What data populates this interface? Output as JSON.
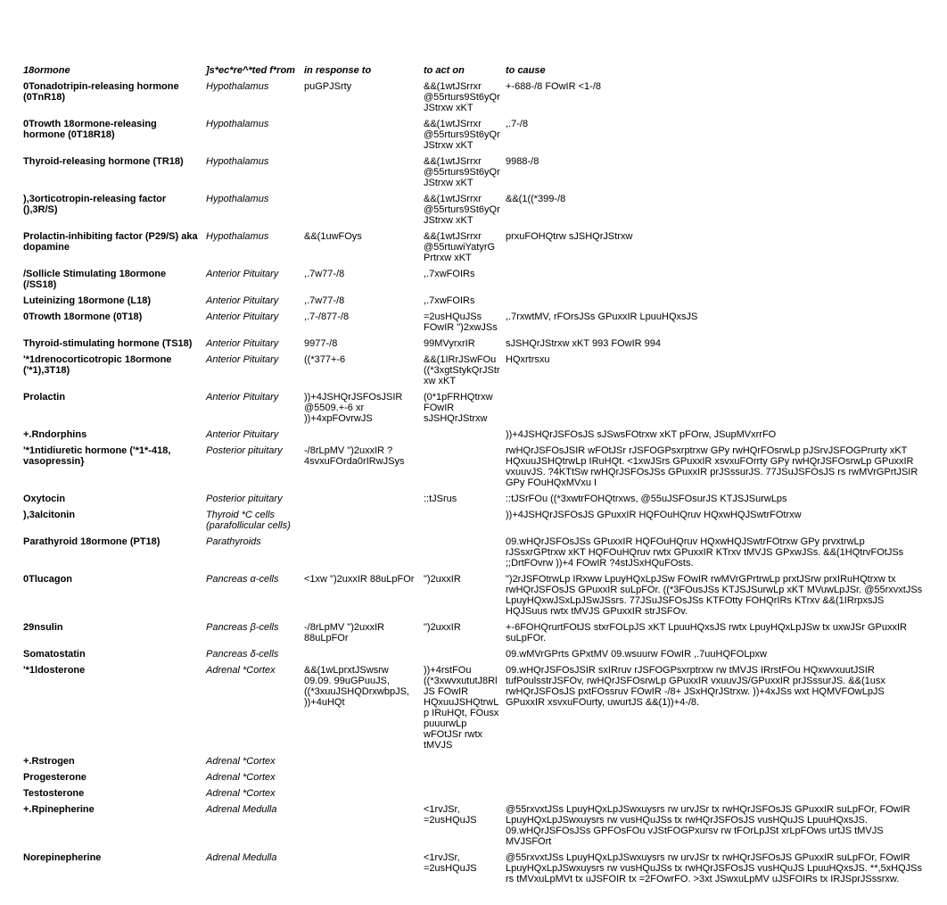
{
  "headers": {
    "c1": "18ormone",
    "c2": "]s*ec*re^*ted f*rom",
    "c3": "in response to",
    "c4": "to act on",
    "c5": "to cause"
  },
  "rows": [
    {
      "c1": "0Tonadotripin-releasing hormone (0TnR18)",
      "c2": "Hypothalamus",
      "c3": "puGPJSrty",
      "c4": "&&(1wtJSrrxr @55rturs9St6yQrJStrxw xKT",
      "c5": "+-688-/8 FOwIR <1-/8"
    },
    {
      "c1": "0Trowth 18ormone-releasing hormone (0T18R18)",
      "c2": "Hypothalamus",
      "c3": "",
      "c4": "&&(1wtJSrrxr @55rturs9St6yQrJStrxw xKT",
      "c5": ",.7-/8"
    },
    {
      "c1": "Thyroid-releasing hormone (TR18)",
      "c2": "Hypothalamus",
      "c3": "",
      "c4": "&&(1wtJSrrxr @55rturs9St6yQrJStrxw xKT",
      "c5": "9988-/8"
    },
    {
      "c1": "),3orticotropin-releasing factor (),3R/S)",
      "c2": "Hypothalamus",
      "c3": "",
      "c4": "&&(1wtJSrrxr @55rturs9St6yQrJStrxw xKT",
      "c5": "&&(1((*399-/8"
    },
    {
      "c1": "Prolactin-inhibiting factor (P29/S) aka dopamine",
      "c2": "Hypothalamus",
      "c3": "&&(1uwFOys",
      "c4": "&&(1wtJSrrxr @55rtuwiYatyrGPrtrxw xKT",
      "c5": "prxuFOHQtrw sJSHQrJStrxw"
    },
    {
      "c1": "/Sollicle Stimulating 18ormone (/SS18)",
      "c2": "Anterior Pituitary",
      "c3": ",.7w77-/8",
      "c4": ",.7xwFOIRs",
      "c5": ""
    },
    {
      "c1": "Luteinizing 18ormone (L18)",
      "c2": "Anterior Pituitary",
      "c3": ",.7w77-/8",
      "c4": ",.7xwFOIRs",
      "c5": ""
    },
    {
      "c1": "0Trowth 18ormone (0T18)",
      "c2": "Anterior Pituitary",
      "c3": ",.7-/877-/8",
      "c4": "=2usHQuJSs FOwIR \")2xwJSs",
      "c5": ",.7rxwtMV, rFOrsJSs GPuxxIR LpuuHQxsJS"
    },
    {
      "c1": "Thyroid-stimulating hormone (TS18)",
      "c2": "Anterior Pituitary",
      "c3": "9977-/8",
      "c4": "99MVyrxrIR",
      "c5": "sJSHQrJStrxw xKT 993 FOwIR 994"
    },
    {
      "c1": "'*1drenocorticotropic 18ormone ('*1),3T18)",
      "c2": "Anterior Pituitary",
      "c3": "((*377+-6",
      "c4": "&&(1IRrJSwFOu ((*3xgtStykQrJStrxw xKT",
      "c5": "HQxrtrsxu"
    },
    {
      "c1": "Prolactin",
      "c2": "Anterior Pituitary",
      "c3": "))+4JSHQrJSFOsJSIR @5509.+-6 xr ))+4xpFOvrwJS",
      "c4": "(0*1pFRHQtrxw FOwIR sJSHQrJStrxw",
      "c5": ""
    },
    {
      "c1": "+.Rndorphins",
      "c2": "Anterior Pituitary",
      "c3": "",
      "c4": "",
      "c5": "))+4JSHQrJSFOsJS sJSwsFOtrxw xKT pFOrw, JSupMVxrrFO"
    },
    {
      "c1": "'*1ntidiuretic hormone ('*1*-418, vasopressin}",
      "c2": "Posterior pituitary",
      "c3": "-/8rLpMV \")2uxxIR ?4svxuFOrda0rIRwJSys",
      "c4": "",
      "c5": "rwHQrJSFOsJSIR wFOtJSr rJSFOGPsxrptrxw GPy rwHQrFOsrwLp pJSrvJSFOGPrurty xKT HQxuuJSHQtrwLp IRuHQt. <1xwJSrs GPuxxIR xsvxuFOrrty GPy rwHQrJSFOsrwLp GPuxxIR vxuuvJS. ?4KTtSw rwHQrJSFOsJSs GPuxxIR prJSssurJS.                                      77JSuJSFOsJS rs rwMVrGPrtJSIR GPy FOuHQxMVxu I"
    },
    {
      "c1": "Oxytocin",
      "c2": "Posterior pituitary",
      "c3": "",
      "c4": "::tJSrus",
      "c5": "::tJSrFOu ((*3xwtrFOHQtrxws, @55uJSFOsurJS KTJSJSurwLps"
    },
    {
      "c1": "),3alcitonin",
      "c2": "Thyroid *C cells (parafollicular cells)",
      "c3": "",
      "c4": "",
      "c5": "))+4JSHQrJSFOsJS GPuxxIR HQFOuHQruv HQxwHQJSwtrFOtrxw"
    },
    {
      "c1": "Parathyroid 18ormone (PT18)",
      "c2": "Parathyroids",
      "c3": "",
      "c4": "",
      "c5": "09.wHQrJSFOsJSs GPuxxIR HQFOuHQruv HQxwHQJSwtrFOtrxw GPy prvxtrwLp rJSsxrGPtrxw xKT HQFOuHQruv rwtx GPuxxIR KTrxv tMVJS GPxwJSs.   &&(1HQtrvFOtJSs ;;DrtFOvrw ))+4 FOwIR ?4stJSxHQuFOsts."
    },
    {
      "c1": "0Tlucagon",
      "c2": "Pancreas α-cells",
      "c3": "<1xw \")2uxxIR 88uLpFOr",
      "c4": "\")2uxxIR",
      "c5": "\")2rJSFOtrwLp IRxww LpuyHQxLpJSw FOwIR rwMVrGPrtrwLp prxtJSrw prxIRuHQtrxw tx rwHQrJSFOsJS GPuxxIR suLpFOr. ((*3FOusJSs KTJSJSurwLp xKT MVuwLpJSr. @55rxvxtJSs LpuyHQxwJSxLpJSwJSsrs. 77JSuJSFOsJSs KTFOtty FOHQrIRs KTrxv &&(1IRrpxsJS HQJSuus rwtx tMVJS GPuxxIR strJSFOv."
    },
    {
      "c1": "29nsulin",
      "c2": "Pancreas β-cells",
      "c3": "-/8rLpMV \")2uxxIR 88uLpFOr",
      "c4": "\")2uxxIR",
      "c5": "+-6FOHQrurtFOtJS stxrFOLpJS xKT LpuuHQxsJS rwtx LpuyHQxLpJSw tx uxwJSr GPuxxIR suLpFOr."
    },
    {
      "c1": "Somatostatin",
      "c2": "Pancreas δ-cells",
      "c3": "",
      "c4": "",
      "c5": "09.wMVrGPrts GPxtMV 09.wsuurw FOwIR ,.7uuHQFOLpxw"
    },
    {
      "c1": "'*1ldosterone",
      "c2": "Adrenal *Cortex",
      "c3": "&&(1wLprxtJSwsrw 09.09. 99uGPuuJS, ((*3xuuJSHQDrxwbpJS, ))+4uHQt",
      "c4": "))+4rstFOu ((*3xwvxututJ8RlJS FOwIR HQxuuJSHQtrwLp IRuHQt, FOusx puuurwLp wFOtJSr rwtx tMVJS",
      "c5": "09.wHQrJSFOsJSIR sxIRruv rJSFOGPsxrptrxw rw tMVJS IRrstFOu HQxwvxuutJSIR tufPoulsstrJSFOv, rwHQrJSFOsrwLp GPuxxIR vxuuvJS/GPuxxIR prJSssurJS. &&(1usx rwHQrJSFOsJS pxtFOssruv FOwIR -/8+ JSxHQrJStrxw. ))+4xJSs wxt HQMVFOwLpJS GPuxxIR xsvxuFOurty, uwurtJS &&(1))+4-/8."
    },
    {
      "c1": "+.Rstrogen",
      "c2": "Adrenal *Cortex",
      "c3": "",
      "c4": "",
      "c5": ""
    },
    {
      "c1": "Progesterone",
      "c2": "Adrenal *Cortex",
      "c3": "",
      "c4": "",
      "c5": ""
    },
    {
      "c1": "Testosterone",
      "c2": "Adrenal *Cortex",
      "c3": "",
      "c4": "",
      "c5": ""
    },
    {
      "c1": "+.Rpinepherine",
      "c2": "Adrenal Medulla",
      "c3": "",
      "c4": "<1rvJSr, =2usHQuJS",
      "c5": "@55rxvxtJSs LpuyHQxLpJSwxuysrs rw urvJSr tx rwHQrJSFOsJS GPuxxIR suLpFOr, FOwIR LpuyHQxLpJSwxuysrs rw vusHQuJSs tx rwHQrJSFOsJS vusHQuJS LpuuHQxsJS. 09.wHQrJSFOsJSs GPFOsFOu vJStFOGPxursv rw tFOrLpJSt xrLpFOws urtJS tMVJS MVJSFOrt"
    },
    {
      "c1": "Norepinepherine",
      "c2": "Adrenal Medulla",
      "c3": "",
      "c4": "<1rvJSr, =2usHQuJS",
      "c5": "@55rxvxtJSs LpuyHQxLpJSwxuysrs rw urvJSr tx rwHQrJSFOsJS GPuxxIR suLpFOr, FOwIR LpuyHQxLpJSwxuysrs rw vusHQuJSs tx rwHQrJSFOsJS vusHQuJS LpuuHQxsJS. **,5xHQJSs rs tMVxuLpMVt tx uJSFOIR tx =2FOwrFO. >3xt JSwxuLpMV uJSFOIRs tx IRJSprJSssrxw."
    }
  ]
}
